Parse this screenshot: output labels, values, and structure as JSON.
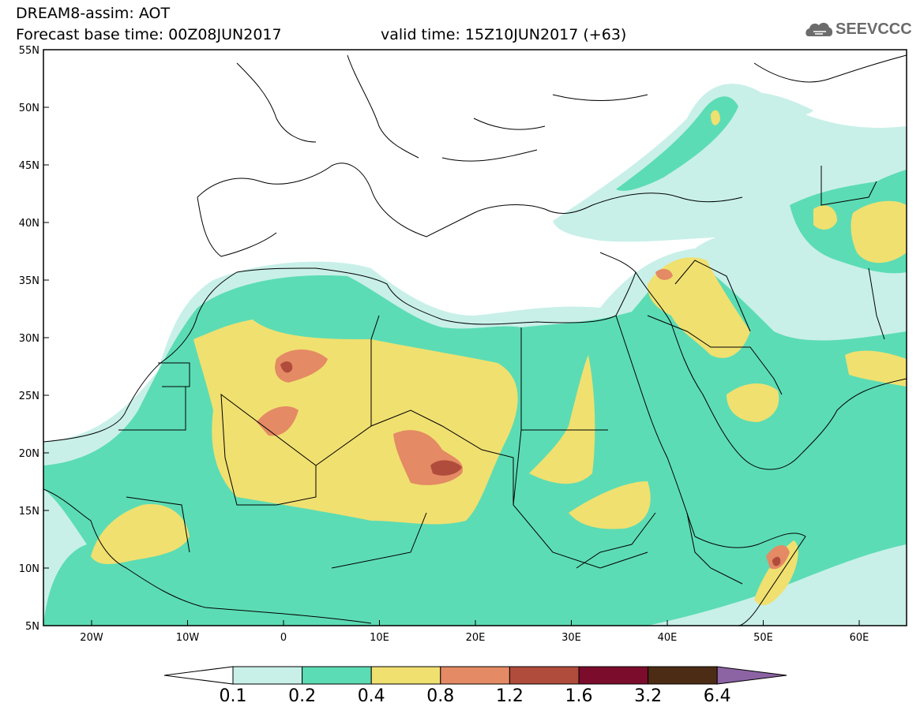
{
  "title": {
    "line1": "DREAM8-assim: AOT",
    "line2_left": "Forecast base time: 00Z08JUN2017",
    "line2_right": "valid time: 15Z10JUN2017 (+63)"
  },
  "logo": {
    "text": "SEEVCCC",
    "icon": "cloud-logo-icon"
  },
  "map": {
    "lat_ticks": [
      "55N",
      "50N",
      "45N",
      "40N",
      "35N",
      "30N",
      "25N",
      "20N",
      "15N",
      "10N",
      "5N"
    ],
    "lon_ticks": [
      "20W",
      "10W",
      "0",
      "10E",
      "20E",
      "30E",
      "40E",
      "50E",
      "60E"
    ],
    "region": "lon 25W-65E, lat 5N-55N"
  },
  "colorbar": {
    "labels": [
      "0.1",
      "0.2",
      "0.4",
      "0.8",
      "1.2",
      "1.6",
      "3.2",
      "6.4"
    ],
    "colors": [
      "#ffffff",
      "#c8f0e8",
      "#5cdcb4",
      "#f0e070",
      "#e48a64",
      "#b04c3c",
      "#7c0c2c",
      "#4c2c14",
      "#8c64a4"
    ]
  }
}
